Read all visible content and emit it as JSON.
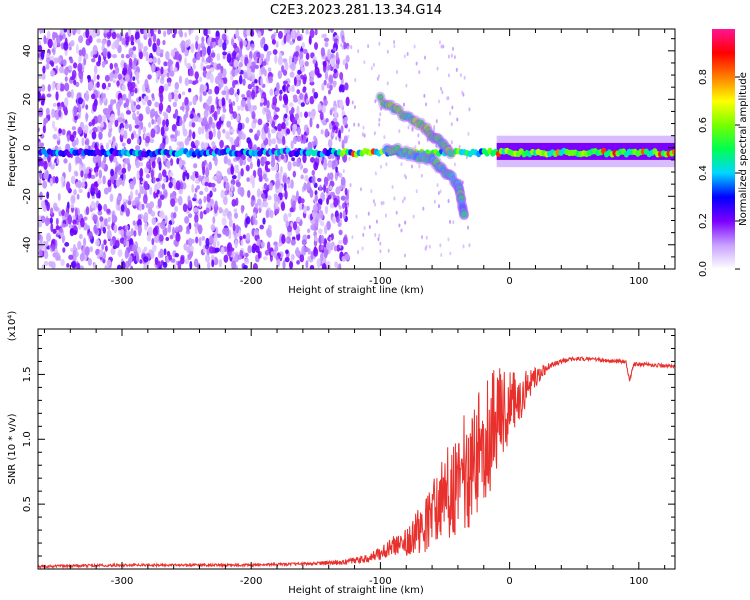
{
  "figure": {
    "title": "C2E3.2023.281.13.34.G14"
  },
  "chart_data": [
    {
      "type": "heatmap",
      "xlabel": "Height of straight line (km)",
      "ylabel": "Frequency (Hz)",
      "xlim": [
        -365,
        128
      ],
      "ylim": [
        -50,
        49
      ],
      "xticks": [
        -300,
        -200,
        -100,
        0,
        100
      ],
      "yticks": [
        -40,
        -20,
        0,
        20,
        40
      ],
      "colorbar": {
        "label": "Normalized spectral amplitude",
        "range": [
          0,
          1
        ],
        "ticks": [
          0.0,
          0.2,
          0.4,
          0.6,
          0.8
        ],
        "colors": [
          "#ffffff",
          "#c8a0ff",
          "#7b00ff",
          "#0000ff",
          "#00d7ff",
          "#00ff50",
          "#78ff00",
          "#ffff00",
          "#ff7f00",
          "#ff0000",
          "#ff1493"
        ]
      },
      "features": [
        {
          "name": "carrier",
          "x_range": [
            -365,
            128
          ],
          "freq_hz": -2,
          "amplitude": 0.35
        },
        {
          "name": "branch_up",
          "x": [
            -100,
            -65,
            -45
          ],
          "freq_hz": [
            20,
            8,
            -2
          ],
          "amplitude": 0.45
        },
        {
          "name": "branch_down",
          "x": [
            -95,
            -60,
            -40,
            -35
          ],
          "freq_hz": [
            0,
            -5,
            -15,
            -28
          ],
          "amplitude": 0.35
        }
      ]
    },
    {
      "type": "line",
      "xlabel": "Height of straight line (km)",
      "ylabel": "SNR (10 * v/v)",
      "y_multiplier": "(x10⁴)",
      "xlim": [
        -365,
        128
      ],
      "ylim": [
        0,
        1.85
      ],
      "xticks": [
        -300,
        -200,
        -100,
        0,
        100
      ],
      "yticks": [
        0.5,
        1.0,
        1.5
      ],
      "series": [
        {
          "color": "#e8302c",
          "x": [
            -365,
            -300,
            -250,
            -200,
            -160,
            -130,
            -110,
            -100,
            -95,
            -90,
            -85,
            -80,
            -75,
            -70,
            -65,
            -60,
            -55,
            -50,
            -45,
            -40,
            -35,
            -30,
            -25,
            -20,
            -15,
            -10,
            -5,
            0,
            5,
            10,
            15,
            20,
            25,
            30,
            35,
            40,
            50,
            60,
            70,
            80,
            90,
            93,
            96,
            100,
            110,
            120,
            128
          ],
          "y": [
            0.02,
            0.03,
            0.03,
            0.03,
            0.04,
            0.05,
            0.08,
            0.12,
            0.15,
            0.18,
            0.2,
            0.22,
            0.26,
            0.3,
            0.35,
            0.42,
            0.5,
            0.55,
            0.62,
            0.68,
            0.74,
            0.8,
            0.9,
            1.0,
            1.08,
            1.14,
            1.2,
            1.24,
            1.3,
            1.36,
            1.42,
            1.47,
            1.52,
            1.56,
            1.58,
            1.6,
            1.62,
            1.62,
            1.61,
            1.6,
            1.6,
            1.45,
            1.58,
            1.58,
            1.57,
            1.57,
            1.56
          ],
          "noise": [
            0.01,
            0.01,
            0.01,
            0.01,
            0.01,
            0.02,
            0.03,
            0.05,
            0.06,
            0.08,
            0.1,
            0.12,
            0.14,
            0.18,
            0.22,
            0.26,
            0.3,
            0.35,
            0.38,
            0.42,
            0.45,
            0.48,
            0.5,
            0.52,
            0.48,
            0.42,
            0.35,
            0.28,
            0.22,
            0.18,
            0.12,
            0.08,
            0.05,
            0.03,
            0.02,
            0.02,
            0.015,
            0.015,
            0.015,
            0.015,
            0.015,
            0.02,
            0.015,
            0.015,
            0.015,
            0.015,
            0.015
          ]
        }
      ]
    }
  ]
}
